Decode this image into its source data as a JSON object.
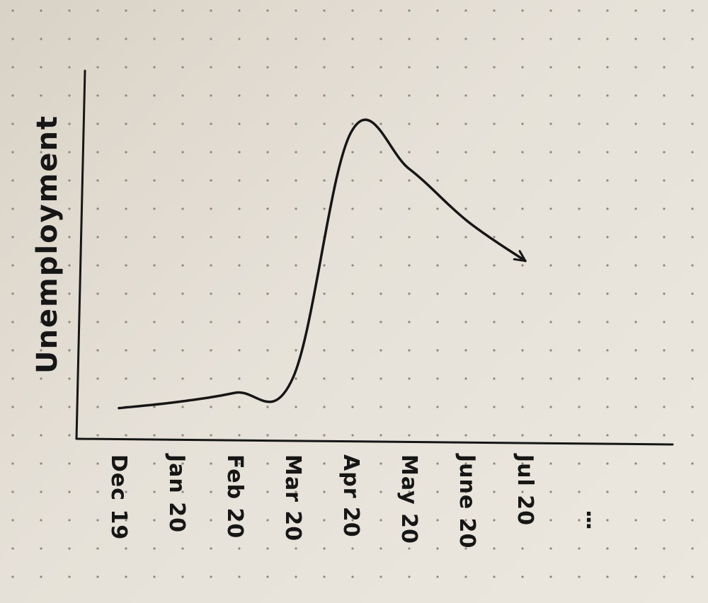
{
  "chart_data": {
    "type": "line",
    "title": "",
    "ylabel": "Unemployment",
    "xlabel": "",
    "x": [
      "Dec 19",
      "Jan 20",
      "Feb 20",
      "Mar 20",
      "Apr 20",
      "May 20",
      "June 20",
      "Jul 20"
    ],
    "y": [
      1,
      1.2,
      1.5,
      2,
      10,
      8.8,
      7.1,
      5.8
    ],
    "ylim": [
      0,
      12
    ],
    "continuation_marker": "⋮",
    "arrow_at_end": true,
    "grid": "dot-grid paper"
  }
}
